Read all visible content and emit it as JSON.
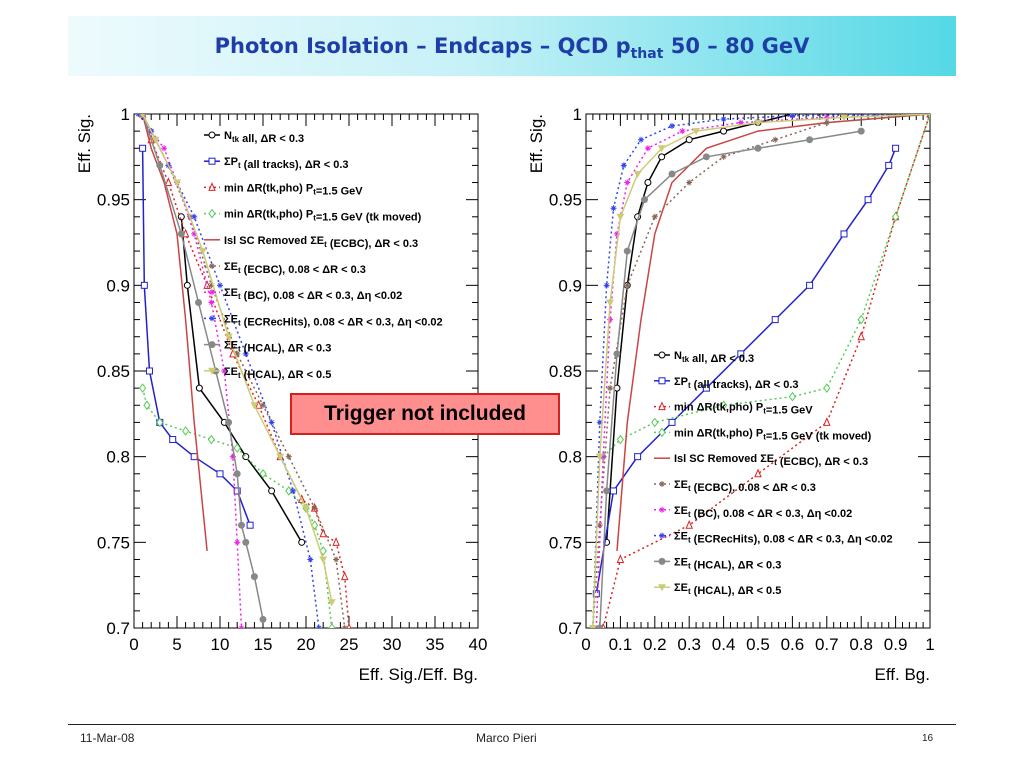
{
  "slide": {
    "title_main": "Photon Isolation – Endcaps – QCD p",
    "title_sub": "that",
    "title_tail": " 50 – 80 GeV",
    "callout": "Trigger not included"
  },
  "footer": {
    "date": "11-Mar-08",
    "author": "Marco Pieri",
    "page": "16"
  },
  "chart_data": [
    {
      "type": "line",
      "xlabel": "Eff. Sig./Eff. Bg.",
      "ylabel": "Eff. Sig.",
      "xlim": [
        0,
        40
      ],
      "ylim": [
        0.7,
        1.0
      ],
      "xticks": [
        "0",
        "5",
        "10",
        "15",
        "20",
        "25",
        "30",
        "35",
        "40"
      ],
      "yticks": [
        "0.7",
        "0.75",
        "0.8",
        "0.85",
        "0.9",
        "0.95",
        "1"
      ],
      "legend_position": "top-center",
      "series": [
        {
          "name": "N_tk all, ΔR < 0.3",
          "color": "#000000",
          "marker": "circle-open",
          "dash": "",
          "x": [
            5.5,
            6.2,
            7.6,
            10.5,
            13.0,
            16.0,
            19.5
          ],
          "y": [
            0.94,
            0.9,
            0.84,
            0.82,
            0.8,
            0.78,
            0.75
          ]
        },
        {
          "name": "ΣP_t (all tracks), ΔR < 0.3",
          "color": "#2222cc",
          "marker": "square-open",
          "dash": "",
          "x": [
            1.0,
            1.2,
            1.8,
            3.0,
            4.5,
            7.0,
            10.0,
            12.0,
            13.5
          ],
          "y": [
            0.98,
            0.9,
            0.85,
            0.82,
            0.81,
            0.8,
            0.79,
            0.78,
            0.76
          ]
        },
        {
          "name": "min ΔR(tk,pho) P_t=1.5 GeV",
          "color": "#dd2222",
          "marker": "triangle-open",
          "dash": "2,3",
          "x": [
            1.0,
            2.0,
            4.0,
            6.0,
            8.5,
            11.5,
            14.5,
            17.0,
            19.5,
            21.0,
            22.0,
            23.5,
            24.5,
            25.0
          ],
          "y": [
            1.0,
            0.985,
            0.96,
            0.93,
            0.9,
            0.86,
            0.83,
            0.8,
            0.775,
            0.77,
            0.755,
            0.75,
            0.73,
            0.7
          ]
        },
        {
          "name": "min ΔR(tk,pho) P_t=1.5 GeV (tk moved)",
          "color": "#55cc55",
          "marker": "diamond-open",
          "dash": "2,3",
          "x": [
            1.0,
            1.5,
            3.0,
            6.0,
            9.0,
            12.0,
            15.0,
            18.0,
            20.0,
            21.0,
            22.0,
            23.0
          ],
          "y": [
            0.84,
            0.83,
            0.82,
            0.815,
            0.81,
            0.805,
            0.79,
            0.78,
            0.77,
            0.76,
            0.745,
            0.7
          ]
        },
        {
          "name": "Isl SC Removed ΣE_t (ECBC), ΔR < 0.3",
          "color": "#cc4444",
          "marker": "none",
          "dash": "",
          "x": [
            1.0,
            2.0,
            3.5,
            5.0,
            6.0,
            7.0,
            8.0,
            8.5
          ],
          "y": [
            1.0,
            0.98,
            0.96,
            0.93,
            0.88,
            0.82,
            0.77,
            0.745
          ]
        },
        {
          "name": "ΣE_t (ECBC), 0.08 < ΔR < 0.3",
          "color": "#886655",
          "marker": "star",
          "dash": "2,3",
          "x": [
            1.0,
            2.0,
            4.0,
            6.5,
            9.0,
            12.0,
            15.0,
            18.0,
            21.0,
            23.5,
            24.5
          ],
          "y": [
            1.0,
            0.99,
            0.97,
            0.94,
            0.9,
            0.86,
            0.83,
            0.8,
            0.77,
            0.74,
            0.7
          ]
        },
        {
          "name": "ΣE_t (BC), 0.08 < ΔR < 0.3, Δη <0.02",
          "color": "#ee22ee",
          "marker": "star",
          "dash": "2,3",
          "x": [
            1.0,
            2.0,
            3.5,
            5.0,
            7.0,
            9.0,
            10.5,
            11.5,
            12.0,
            12.5
          ],
          "y": [
            1.0,
            0.99,
            0.98,
            0.96,
            0.93,
            0.89,
            0.85,
            0.8,
            0.75,
            0.7
          ]
        },
        {
          "name": "ΣE_t (ECRecHits), 0.08 < ΔR < 0.3, Δη <0.02",
          "color": "#3344ee",
          "marker": "star",
          "dash": "2,3",
          "x": [
            0.5,
            2.0,
            4.0,
            7.0,
            10.0,
            13.0,
            16.0,
            18.5,
            20.5,
            21.5
          ],
          "y": [
            1.0,
            0.99,
            0.97,
            0.94,
            0.9,
            0.86,
            0.82,
            0.78,
            0.74,
            0.7
          ]
        },
        {
          "name": "ΣE_t (HCAL), ΔR < 0.3",
          "color": "#888888",
          "marker": "circle-filled",
          "dash": "",
          "x": [
            1.0,
            3.0,
            5.5,
            7.5,
            9.5,
            11.0,
            12.0,
            12.5,
            13.0,
            14.0,
            15.0
          ],
          "y": [
            1.0,
            0.97,
            0.93,
            0.89,
            0.85,
            0.82,
            0.79,
            0.76,
            0.75,
            0.73,
            0.705
          ]
        },
        {
          "name": "ΣE_t (HCAL), ΔR < 0.5",
          "color": "#cccc77",
          "marker": "triangle-down-filled",
          "dash": "",
          "x": [
            1.0,
            2.5,
            5.0,
            8.0,
            11.0,
            14.0,
            17.0,
            20.0,
            22.0,
            23.0
          ],
          "y": [
            1.0,
            0.985,
            0.96,
            0.92,
            0.87,
            0.83,
            0.8,
            0.77,
            0.74,
            0.715
          ]
        }
      ]
    },
    {
      "type": "line",
      "xlabel": "Eff. Bg.",
      "ylabel": "Eff. Sig.",
      "xlim": [
        0,
        1
      ],
      "ylim": [
        0.7,
        1.0
      ],
      "xticks": [
        "0",
        "0.1",
        "0.2",
        "0.3",
        "0.4",
        "0.5",
        "0.6",
        "0.7",
        "0.8",
        "0.9",
        "1"
      ],
      "yticks": [
        "0.7",
        "0.75",
        "0.8",
        "0.85",
        "0.9",
        "0.95",
        "1"
      ],
      "legend_position": "bottom-right",
      "series": [
        {
          "name": "N_tk all, ΔR < 0.3",
          "color": "#000000",
          "marker": "circle-open",
          "dash": "",
          "x": [
            0.06,
            0.09,
            0.12,
            0.15,
            0.18,
            0.22,
            0.3,
            0.4,
            0.5,
            0.6
          ],
          "y": [
            0.75,
            0.84,
            0.9,
            0.94,
            0.96,
            0.975,
            0.985,
            0.99,
            0.995,
            1.0
          ]
        },
        {
          "name": "ΣP_t (all tracks), ΔR < 0.3",
          "color": "#2222cc",
          "marker": "square-open",
          "dash": "",
          "x": [
            0.03,
            0.08,
            0.15,
            0.25,
            0.35,
            0.45,
            0.55,
            0.65,
            0.75,
            0.82,
            0.88,
            0.9
          ],
          "y": [
            0.72,
            0.78,
            0.8,
            0.82,
            0.84,
            0.86,
            0.88,
            0.9,
            0.93,
            0.95,
            0.97,
            0.98
          ]
        },
        {
          "name": "min ΔR(tk,pho) P_t=1.5 GeV",
          "color": "#dd2222",
          "marker": "triangle-open",
          "dash": "2,3",
          "x": [
            0.05,
            0.1,
            0.3,
            0.5,
            0.7,
            0.8,
            0.9,
            1.0
          ],
          "y": [
            0.7,
            0.74,
            0.76,
            0.79,
            0.82,
            0.87,
            0.94,
            1.0
          ]
        },
        {
          "name": "min ΔR(tk,pho) P_t=1.5 GeV (tk moved)",
          "color": "#55cc55",
          "marker": "diamond-open",
          "dash": "2,3",
          "x": [
            0.05,
            0.1,
            0.2,
            0.4,
            0.6,
            0.7,
            0.8,
            0.9,
            1.0
          ],
          "y": [
            0.8,
            0.81,
            0.82,
            0.83,
            0.835,
            0.84,
            0.88,
            0.94,
            1.0
          ]
        },
        {
          "name": "Isl SC Removed ΣE_t (ECBC), ΔR < 0.3",
          "color": "#cc4444",
          "marker": "none",
          "dash": "",
          "x": [
            0.09,
            0.12,
            0.16,
            0.2,
            0.25,
            0.35,
            0.5,
            0.7,
            1.0
          ],
          "y": [
            0.745,
            0.82,
            0.88,
            0.93,
            0.96,
            0.98,
            0.99,
            0.995,
            1.0
          ]
        },
        {
          "name": "ΣE_t (ECBC), 0.08 < ΔR < 0.3",
          "color": "#886655",
          "marker": "star",
          "dash": "2,3",
          "x": [
            0.02,
            0.04,
            0.07,
            0.12,
            0.2,
            0.3,
            0.4,
            0.55,
            0.7,
            1.0
          ],
          "y": [
            0.7,
            0.76,
            0.84,
            0.9,
            0.94,
            0.96,
            0.975,
            0.985,
            0.995,
            1.0
          ]
        },
        {
          "name": "ΣE_t (BC), 0.08 < ΔR < 0.3, Δη <0.02",
          "color": "#ee22ee",
          "marker": "star",
          "dash": "2,3",
          "x": [
            0.03,
            0.05,
            0.07,
            0.09,
            0.12,
            0.18,
            0.28,
            0.45,
            0.7,
            1.0
          ],
          "y": [
            0.7,
            0.8,
            0.88,
            0.93,
            0.96,
            0.98,
            0.99,
            0.995,
            0.998,
            1.0
          ]
        },
        {
          "name": "ΣE_t (ECRecHits), 0.08 < ΔR < 0.3, Δη <0.02",
          "color": "#3344ee",
          "marker": "star",
          "dash": "2,3",
          "x": [
            0.02,
            0.04,
            0.06,
            0.08,
            0.11,
            0.16,
            0.25,
            0.4,
            0.6,
            1.0
          ],
          "y": [
            0.7,
            0.82,
            0.9,
            0.945,
            0.97,
            0.985,
            0.993,
            0.997,
            0.999,
            1.0
          ]
        },
        {
          "name": "ΣE_t (HCAL), ΔR < 0.3",
          "color": "#888888",
          "marker": "circle-filled",
          "dash": "",
          "x": [
            0.04,
            0.06,
            0.09,
            0.12,
            0.17,
            0.25,
            0.35,
            0.5,
            0.65,
            0.8
          ],
          "y": [
            0.7,
            0.78,
            0.86,
            0.92,
            0.95,
            0.965,
            0.975,
            0.98,
            0.985,
            0.99
          ]
        },
        {
          "name": "ΣE_t (HCAL), ΔR < 0.5",
          "color": "#cccc77",
          "marker": "triangle-down-filled",
          "dash": "",
          "x": [
            0.02,
            0.04,
            0.07,
            0.1,
            0.15,
            0.22,
            0.32,
            0.5,
            0.75,
            1.0
          ],
          "y": [
            0.7,
            0.8,
            0.89,
            0.94,
            0.965,
            0.98,
            0.99,
            0.995,
            0.998,
            1.0
          ]
        }
      ]
    }
  ]
}
